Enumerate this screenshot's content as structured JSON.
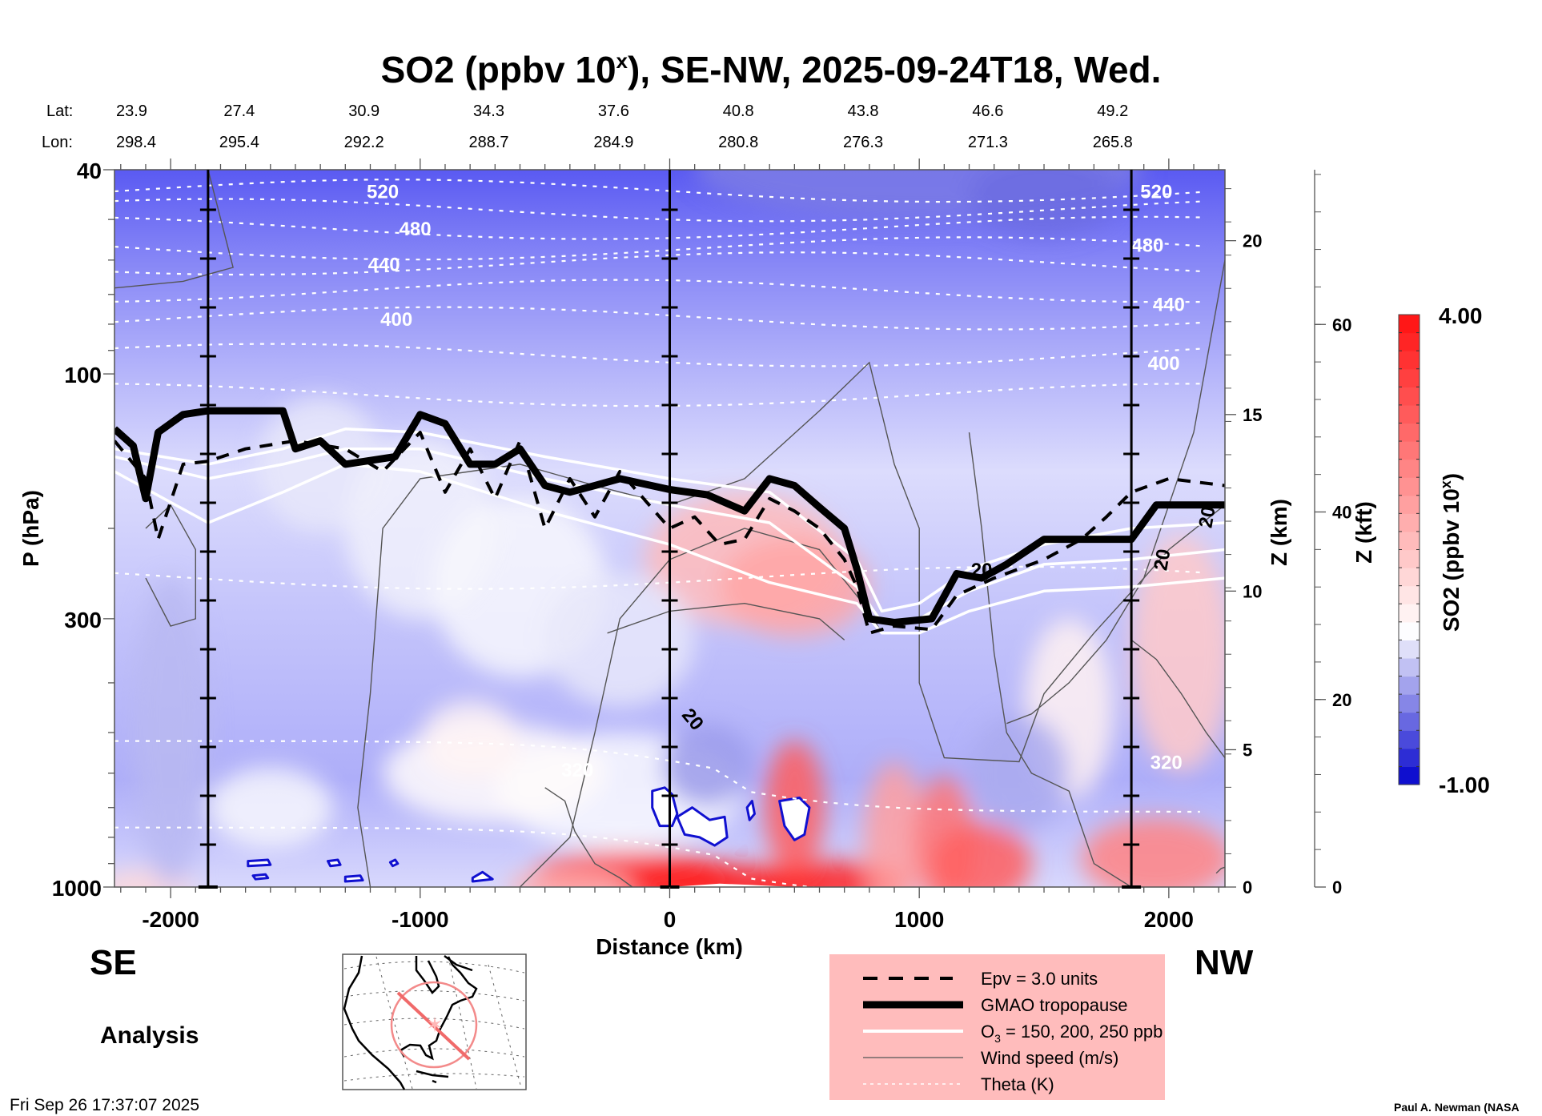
{
  "chart_data": {
    "type": "heatmap",
    "title": "SO2 (ppbv 10",
    "title_sup": "x",
    "title_rest": "), SE-NW, 2025-09-24T18, Wed.",
    "xlabel": "Distance (km)",
    "ylabel": "P (hPa)",
    "xlim": [
      -2225,
      2225
    ],
    "ylim_hpa": [
      1000,
      40
    ],
    "y_scale": "log",
    "x_ticks": [
      -2000,
      -1000,
      0,
      1000,
      2000
    ],
    "y_ticks": [
      40,
      100,
      300,
      1000
    ],
    "z_km_label": "Z (km)",
    "z_km_ticks": [
      {
        "label": "0",
        "hpa": 1000
      },
      {
        "label": "5",
        "hpa": 540
      },
      {
        "label": "10",
        "hpa": 265
      },
      {
        "label": "15",
        "hpa": 120
      },
      {
        "label": "20",
        "hpa": 55
      }
    ],
    "z_kft_label": "Z (kft)",
    "z_kft_ticks": [
      0,
      20,
      40,
      60
    ],
    "z_kft_max": 76.5,
    "lat_label": "Lat:",
    "lon_label": "Lon:",
    "lat": [
      "23.9",
      "27.4",
      "30.9",
      "34.3",
      "37.6",
      "40.8",
      "43.8",
      "46.6",
      "49.2"
    ],
    "lon": [
      "298.4",
      "295.4",
      "292.2",
      "288.7",
      "284.9",
      "280.8",
      "276.3",
      "271.3",
      "265.8"
    ],
    "latlon_distance_km": [
      -2225,
      -1725,
      -1225,
      -725,
      -225,
      275,
      775,
      1275,
      1775
    ],
    "vertical_markers_km": [
      -1850,
      0,
      1850
    ],
    "colorbar": {
      "label": "SO2 (ppbv 10",
      "label_sup": "x",
      "label_end": ")",
      "min": -1.0,
      "max": 4.0,
      "min_label": "-1.00",
      "max_label": "4.00",
      "low_color": "#0000cc",
      "mid_color": "#ffffff",
      "high_color": "#ff1010",
      "levels": 26
    },
    "theta_labels": [
      {
        "text": "520",
        "km": -1150,
        "hpa": 44
      },
      {
        "text": "480",
        "km": -1020,
        "hpa": 52
      },
      {
        "text": "440",
        "km": -1145,
        "hpa": 61
      },
      {
        "text": "400",
        "km": -1095,
        "hpa": 78
      },
      {
        "text": "320",
        "km": -370,
        "hpa": 590
      },
      {
        "text": "520",
        "km": 1950,
        "hpa": 44
      },
      {
        "text": "480",
        "km": 1915,
        "hpa": 56
      },
      {
        "text": "440",
        "km": 2000,
        "hpa": 73
      },
      {
        "text": "400",
        "km": 1980,
        "hpa": 95
      },
      {
        "text": "320",
        "km": 1990,
        "hpa": 570
      }
    ],
    "theta_levels_hpa_left": [
      44,
      48,
      52,
      57,
      61,
      69,
      78,
      92,
      110,
      250,
      590,
      870
    ],
    "wind_labels": [
      {
        "text": "20",
        "km": 95,
        "hpa": 470,
        "rot": 50
      },
      {
        "text": "20",
        "km": 1250,
        "hpa": 240,
        "rot": 0
      },
      {
        "text": "20",
        "km": 1970,
        "hpa": 230,
        "rot": -80
      },
      {
        "text": "20",
        "km": 2150,
        "hpa": 190,
        "rot": -80
      }
    ],
    "tropopause_hpa": [
      [
        -2225,
        128
      ],
      [
        -2150,
        138
      ],
      [
        -2100,
        175
      ],
      [
        -2050,
        130
      ],
      [
        -1950,
        120
      ],
      [
        -1850,
        118
      ],
      [
        -1550,
        118
      ],
      [
        -1500,
        140
      ],
      [
        -1400,
        135
      ],
      [
        -1300,
        150
      ],
      [
        -1100,
        145
      ],
      [
        -1000,
        120
      ],
      [
        -900,
        125
      ],
      [
        -800,
        150
      ],
      [
        -700,
        150
      ],
      [
        -600,
        140
      ],
      [
        -500,
        165
      ],
      [
        -400,
        170
      ],
      [
        -300,
        165
      ],
      [
        -200,
        160
      ],
      [
        0,
        168
      ],
      [
        150,
        172
      ],
      [
        300,
        185
      ],
      [
        400,
        160
      ],
      [
        500,
        165
      ],
      [
        600,
        182
      ],
      [
        700,
        200
      ],
      [
        750,
        240
      ],
      [
        800,
        300
      ],
      [
        900,
        305
      ],
      [
        1050,
        300
      ],
      [
        1150,
        245
      ],
      [
        1250,
        250
      ],
      [
        1350,
        235
      ],
      [
        1500,
        210
      ],
      [
        1700,
        210
      ],
      [
        1850,
        210
      ],
      [
        1950,
        180
      ],
      [
        2225,
        180
      ]
    ],
    "epv_hpa": [
      [
        -2225,
        135
      ],
      [
        -2100,
        160
      ],
      [
        -2050,
        210
      ],
      [
        -1950,
        150
      ],
      [
        -1850,
        148
      ],
      [
        -1700,
        140
      ],
      [
        -1500,
        135
      ],
      [
        -1300,
        140
      ],
      [
        -1150,
        155
      ],
      [
        -1000,
        130
      ],
      [
        -900,
        170
      ],
      [
        -800,
        140
      ],
      [
        -700,
        175
      ],
      [
        -600,
        135
      ],
      [
        -500,
        200
      ],
      [
        -400,
        160
      ],
      [
        -300,
        190
      ],
      [
        -200,
        155
      ],
      [
        0,
        200
      ],
      [
        100,
        190
      ],
      [
        200,
        215
      ],
      [
        300,
        210
      ],
      [
        400,
        175
      ],
      [
        500,
        185
      ],
      [
        600,
        200
      ],
      [
        700,
        230
      ],
      [
        750,
        260
      ],
      [
        800,
        320
      ],
      [
        900,
        310
      ],
      [
        1050,
        315
      ],
      [
        1150,
        270
      ],
      [
        1300,
        250
      ],
      [
        1500,
        230
      ],
      [
        1650,
        210
      ],
      [
        1750,
        190
      ],
      [
        1850,
        170
      ],
      [
        2000,
        160
      ],
      [
        2225,
        165
      ]
    ],
    "ozone_hpa": [
      [
        [
          -2225,
          140
        ],
        [
          -1850,
          150
        ],
        [
          -1550,
          140
        ],
        [
          -1300,
          128
        ],
        [
          -1000,
          130
        ],
        [
          -500,
          145
        ],
        [
          0,
          160
        ],
        [
          400,
          170
        ],
        [
          750,
          230
        ],
        [
          850,
          290
        ],
        [
          1000,
          280
        ],
        [
          1200,
          240
        ],
        [
          1500,
          215
        ],
        [
          1850,
          200
        ],
        [
          2225,
          195
        ]
      ],
      [
        [
          -2225,
          145
        ],
        [
          -1850,
          160
        ],
        [
          -1550,
          150
        ],
        [
          -1300,
          140
        ],
        [
          -1000,
          140
        ],
        [
          -500,
          160
        ],
        [
          0,
          180
        ],
        [
          400,
          195
        ],
        [
          750,
          260
        ],
        [
          850,
          305
        ],
        [
          1000,
          300
        ],
        [
          1200,
          265
        ],
        [
          1500,
          235
        ],
        [
          1850,
          230
        ],
        [
          2225,
          220
        ]
      ],
      [
        [
          -2225,
          155
        ],
        [
          -1850,
          195
        ],
        [
          -1550,
          170
        ],
        [
          -1300,
          150
        ],
        [
          -1000,
          155
        ],
        [
          -500,
          185
        ],
        [
          0,
          215
        ],
        [
          400,
          255
        ],
        [
          750,
          280
        ],
        [
          850,
          320
        ],
        [
          1000,
          320
        ],
        [
          1200,
          290
        ],
        [
          1500,
          265
        ],
        [
          1850,
          260
        ],
        [
          2225,
          250
        ]
      ]
    ]
  },
  "labels": {
    "se": "SE",
    "nw": "NW",
    "analysis": "Analysis",
    "timestamp": "Fri Sep 26 17:37:07 2025",
    "credit": "Paul A. Newman (NASA"
  },
  "legend": {
    "items": [
      {
        "label": "Epv = 3.0 units",
        "style": "dashed"
      },
      {
        "label": "GMAO tropopause",
        "style": "thick"
      },
      {
        "label_pre": "O",
        "label_sub": "3",
        "label_post": " = 150, 200, 250 ppb",
        "style": "white"
      },
      {
        "label": "Wind speed (m/s)",
        "style": "thin"
      },
      {
        "label": "Theta (K)",
        "style": "dotted"
      }
    ],
    "background": "#ffbcbc"
  },
  "map_inset": {
    "section_color": "#f06a6a"
  }
}
